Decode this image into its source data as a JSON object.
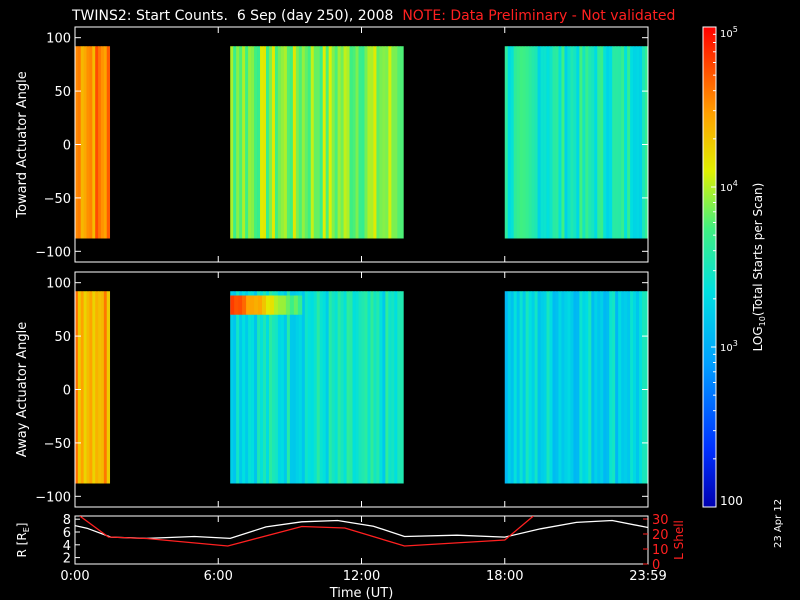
{
  "title": "TWINS2: Start Counts.  6 Sep (day 250), 2008",
  "note": "NOTE: Data Preliminary - Not validated",
  "date_stamp": "23 Apr 12",
  "colors": {
    "background": "#000000",
    "axes": "#ffffff",
    "note": "#ff2020",
    "r_line": "#ffffff",
    "l_shell_line": "#ff2020"
  },
  "chart_data": [
    {
      "type": "heatmap",
      "name": "toward",
      "ylabel": "Toward Actuator Angle",
      "ylim": [
        -110,
        110
      ],
      "y_ticks": [
        100,
        50,
        0,
        -50,
        -100
      ],
      "x_ticks": [
        "0:00",
        "6:00",
        "12:00",
        "18:00",
        "23:59"
      ],
      "data_angle_range": [
        -88,
        92
      ],
      "blocks": [
        {
          "start_hour": 0.0,
          "end_hour": 1.45,
          "log10_counts": 4.55
        },
        {
          "start_hour": 6.5,
          "end_hour": 13.75,
          "log10_counts": 3.9
        },
        {
          "start_hour": 18.0,
          "end_hour": 24.0,
          "log10_counts": 3.5
        }
      ]
    },
    {
      "type": "heatmap",
      "name": "away",
      "ylabel": "Away Actuator Angle",
      "ylim": [
        -110,
        110
      ],
      "y_ticks": [
        100,
        50,
        0,
        -50,
        -100
      ],
      "x_ticks": [
        "0:00",
        "6:00",
        "12:00",
        "18:00",
        "23:59"
      ],
      "data_angle_range": [
        -88,
        92
      ],
      "blocks": [
        {
          "start_hour": 0.0,
          "end_hour": 1.45,
          "log10_counts": 4.45
        },
        {
          "start_hour": 6.5,
          "end_hour": 13.75,
          "log10_counts": 3.4,
          "hot_band": {
            "angle_from": 70,
            "angle_to": 88,
            "start_hour": 6.5,
            "end_hour": 9.5,
            "log10_counts": 4.8
          }
        },
        {
          "start_hour": 18.0,
          "end_hour": 24.0,
          "log10_counts": 3.3
        }
      ]
    },
    {
      "type": "colorbar",
      "label": "LOG10(Total Starts per Scan)",
      "label_prefix": "LOG",
      "label_sub": "10",
      "label_suffix": "(Total Starts per Scan)",
      "range": [
        100,
        100000
      ],
      "ticks": [
        {
          "base": "10",
          "exp": "5",
          "value": 100000
        },
        {
          "base": "10",
          "exp": "4",
          "value": 10000
        },
        {
          "base": "10",
          "exp": "3",
          "value": 1000
        },
        {
          "base": "100",
          "exp": "",
          "value": 100
        }
      ]
    },
    {
      "type": "line",
      "name": "orbit",
      "xlabel": "Time (UT)",
      "ylabel_left": "R [R",
      "ylabel_left_sub": "E",
      "ylabel_left_end": "]",
      "ylabel_right": "L Shell",
      "ylim_left": [
        1,
        8.5
      ],
      "ylim_right": [
        0,
        32
      ],
      "y_ticks_left": [
        8,
        6,
        4,
        2
      ],
      "y_ticks_right": [
        30,
        20,
        10,
        0
      ],
      "x_ticks": [
        "0:00",
        "6:00",
        "12:00",
        "18:00",
        "23:59"
      ],
      "series": [
        {
          "name": "R",
          "axis": "left",
          "x": [
            0,
            0.5,
            1.5,
            3,
            5,
            6.5,
            8,
            9.5,
            11,
            12.5,
            13.8,
            16,
            18,
            19.5,
            21,
            22.5,
            24
          ],
          "y": [
            7.0,
            6.6,
            5.2,
            5.0,
            5.3,
            5.0,
            6.8,
            7.6,
            7.8,
            6.9,
            5.3,
            5.5,
            5.2,
            6.5,
            7.5,
            7.8,
            6.7
          ]
        },
        {
          "name": "L Shell",
          "axis": "right",
          "x": [
            0.2,
            1.4,
            3,
            6.4,
            9.5,
            11.3,
            13.8,
            18,
            19.2
          ],
          "y": [
            32,
            18,
            17,
            12,
            25,
            24,
            12,
            16,
            32
          ]
        }
      ]
    }
  ]
}
